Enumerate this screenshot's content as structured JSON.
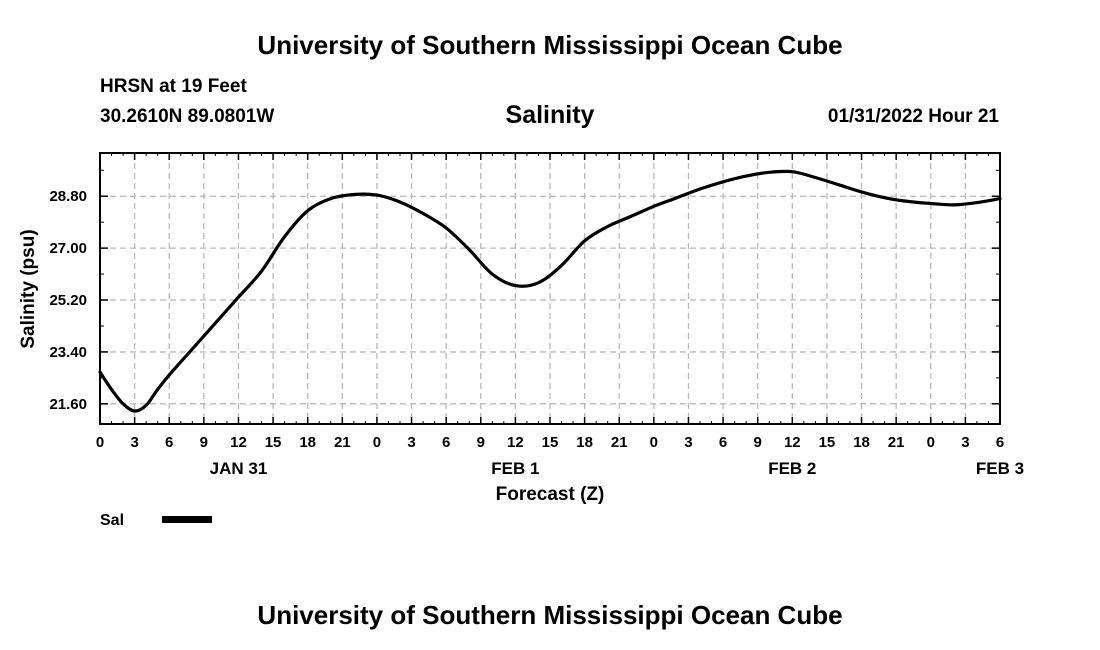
{
  "header": {
    "title": "University of Southern Mississippi Ocean Cube",
    "station": "HRSN at 19 Feet",
    "coords": "30.2610N  89.0801W",
    "chart_title": "Salinity",
    "datetime": "01/31/2022 Hour 21"
  },
  "footer": {
    "title": "University of Southern Mississippi Ocean Cube"
  },
  "chart_data": {
    "type": "line",
    "title": "Salinity",
    "xlabel": "Forecast (Z)",
    "ylabel": "Salinity (psu)",
    "x_tick_labels": [
      "0",
      "3",
      "6",
      "9",
      "12",
      "15",
      "18",
      "21",
      "0",
      "3",
      "6",
      "9",
      "12",
      "15",
      "18",
      "21",
      "0",
      "3",
      "6",
      "9",
      "12",
      "15",
      "18",
      "21",
      "0",
      "3",
      "6"
    ],
    "x_day_labels": [
      {
        "label": "JAN 31",
        "hour": 12
      },
      {
        "label": "FEB 1",
        "hour": 36
      },
      {
        "label": "FEB 2",
        "hour": 60
      },
      {
        "label": "FEB 3",
        "hour": 78
      }
    ],
    "xlim": [
      0,
      78
    ],
    "y_ticks": [
      "21.60",
      "23.40",
      "25.20",
      "27.00",
      "28.80"
    ],
    "ylim": [
      20.9,
      30.3
    ],
    "grid": true,
    "legend": "bottom-left",
    "series": [
      {
        "name": "Sal",
        "color": "#000000",
        "points": [
          [
            0,
            22.7
          ],
          [
            1,
            22.1
          ],
          [
            2,
            21.6
          ],
          [
            3,
            21.35
          ],
          [
            4,
            21.55
          ],
          [
            5,
            22.1
          ],
          [
            6,
            22.6
          ],
          [
            8,
            23.5
          ],
          [
            10,
            24.4
          ],
          [
            12,
            25.3
          ],
          [
            14,
            26.2
          ],
          [
            16,
            27.4
          ],
          [
            18,
            28.3
          ],
          [
            20,
            28.72
          ],
          [
            22,
            28.86
          ],
          [
            24,
            28.84
          ],
          [
            26,
            28.6
          ],
          [
            28,
            28.2
          ],
          [
            30,
            27.7
          ],
          [
            32,
            26.95
          ],
          [
            34,
            26.1
          ],
          [
            36,
            25.7
          ],
          [
            38,
            25.8
          ],
          [
            40,
            26.4
          ],
          [
            42,
            27.25
          ],
          [
            44,
            27.75
          ],
          [
            46,
            28.1
          ],
          [
            48,
            28.45
          ],
          [
            50,
            28.75
          ],
          [
            52,
            29.05
          ],
          [
            54,
            29.3
          ],
          [
            56,
            29.5
          ],
          [
            58,
            29.63
          ],
          [
            60,
            29.65
          ],
          [
            62,
            29.45
          ],
          [
            64,
            29.2
          ],
          [
            66,
            28.95
          ],
          [
            68,
            28.75
          ],
          [
            70,
            28.62
          ],
          [
            72,
            28.55
          ],
          [
            74,
            28.5
          ],
          [
            76,
            28.58
          ],
          [
            78,
            28.72
          ]
        ]
      }
    ]
  }
}
